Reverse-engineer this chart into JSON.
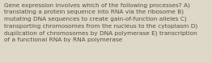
{
  "text": "Gene expression involves which of the following processes? A)\ntranslating a protein sequence into RNA via the ribosome B)\nmutating DNA sequences to create gain-of-function alleles C)\ntransporting chromosomes from the nucleus to the cytoplasm D)\nduplication of chromosomes by DNA polymerase E) transcription\nof a functional RNA by RNA polymerase",
  "background_color": "#ddd8c8",
  "text_color": "#555047",
  "font_size": 5.3,
  "fig_width": 2.62,
  "fig_height": 0.79,
  "linespacing": 1.45
}
